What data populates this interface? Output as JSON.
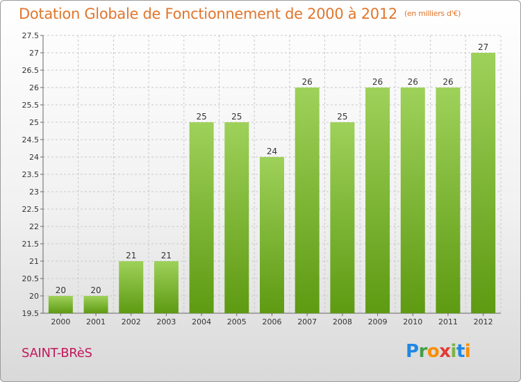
{
  "header": {
    "title": "Dotation Globale de Fonctionnement de 2000 à 2012",
    "subtitle": "(en milliers d'€)"
  },
  "footer": {
    "place": "SAINT-BRèS",
    "logo": {
      "letters": [
        "P",
        "r",
        "o",
        "x",
        "i",
        "t",
        "i"
      ],
      "colors": [
        "#1e88e5",
        "#43a047",
        "#fb8c00",
        "#e53935",
        "#7cb342",
        "#1e88e5",
        "#fb8c00"
      ]
    }
  },
  "chart_data": {
    "type": "bar",
    "title": "Dotation Globale de Fonctionnement de 2000 à 2012",
    "subtitle": "(en milliers d'€)",
    "categories": [
      "2000",
      "2001",
      "2002",
      "2003",
      "2004",
      "2005",
      "2006",
      "2007",
      "2008",
      "2009",
      "2010",
      "2011",
      "2012"
    ],
    "values": [
      20,
      20,
      21,
      21,
      25,
      25,
      24,
      26,
      25,
      26,
      26,
      26,
      27
    ],
    "data_labels": [
      "20",
      "20",
      "21",
      "21",
      "25",
      "25",
      "24",
      "26",
      "25",
      "26",
      "26",
      "26",
      "27"
    ],
    "ylim": [
      19.5,
      27.5
    ],
    "yticks": [
      19.5,
      20,
      20.5,
      21,
      21.5,
      22,
      22.5,
      23,
      23.5,
      24,
      24.5,
      25,
      25.5,
      26,
      26.5,
      27,
      27.5
    ],
    "ytick_labels": [
      "19.5",
      "20",
      "20.5",
      "21",
      "21.5",
      "22",
      "22.5",
      "23",
      "23.5",
      "24",
      "24.5",
      "25",
      "25.5",
      "26",
      "26.5",
      "27",
      "27.5"
    ],
    "grid": true,
    "colors": {
      "bar_top": "#9ed15a",
      "bar_bottom": "#5e9a12",
      "grid": "#c8c8c8"
    }
  }
}
